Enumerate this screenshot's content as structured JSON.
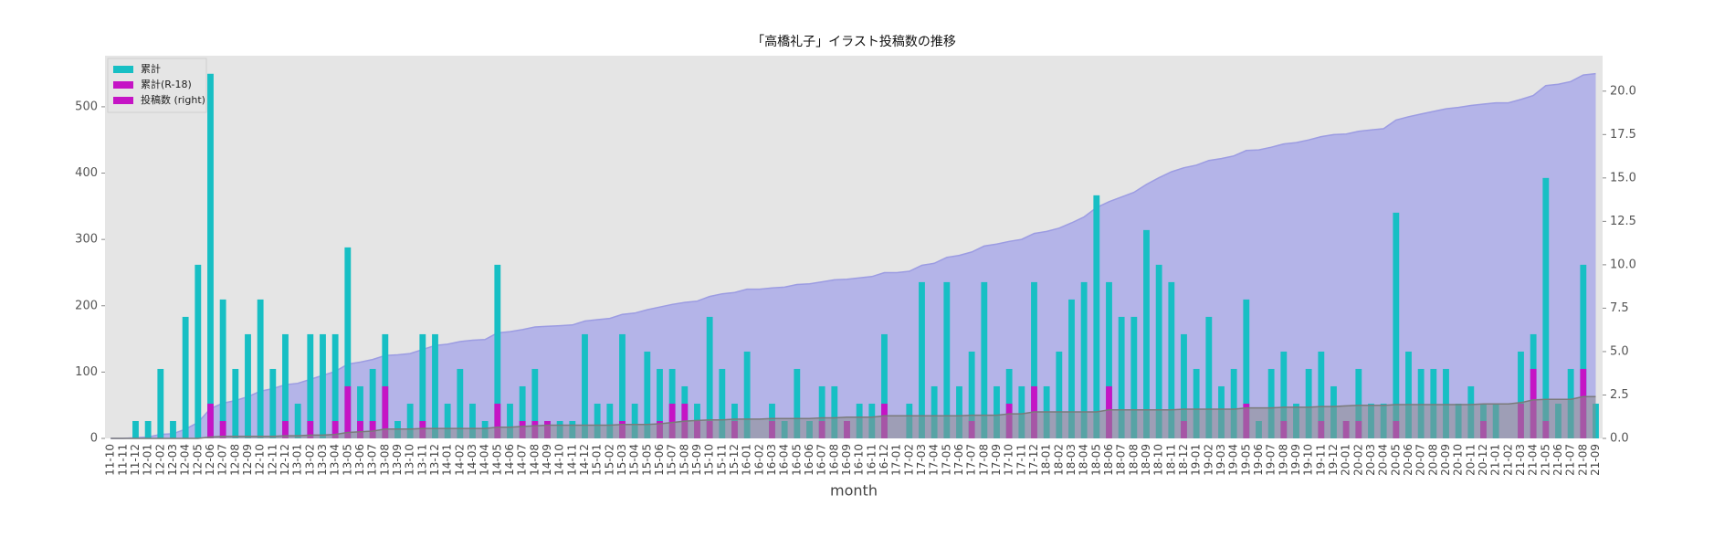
{
  "chart_data": {
    "type": "area_bar",
    "title": "「高橋礼子」イラスト投稿数の推移",
    "xlabel": "month",
    "categories": [
      "11-10",
      "11-11",
      "11-12",
      "12-01",
      "12-02",
      "12-03",
      "12-04",
      "12-05",
      "12-06",
      "12-07",
      "12-08",
      "12-09",
      "12-10",
      "12-11",
      "12-12",
      "13-01",
      "13-02",
      "13-03",
      "13-04",
      "13-05",
      "13-06",
      "13-07",
      "13-08",
      "13-09",
      "13-10",
      "13-11",
      "13-12",
      "14-01",
      "14-02",
      "14-03",
      "14-04",
      "14-05",
      "14-06",
      "14-07",
      "14-08",
      "14-09",
      "14-10",
      "14-11",
      "14-12",
      "15-01",
      "15-02",
      "15-03",
      "15-04",
      "15-05",
      "15-06",
      "15-07",
      "15-08",
      "15-09",
      "15-10",
      "15-11",
      "15-12",
      "16-01",
      "16-02",
      "16-03",
      "16-04",
      "16-05",
      "16-06",
      "16-07",
      "16-08",
      "16-09",
      "16-10",
      "16-11",
      "16-12",
      "17-01",
      "17-02",
      "17-03",
      "17-04",
      "17-05",
      "17-06",
      "17-07",
      "17-08",
      "17-09",
      "17-10",
      "17-11",
      "17-12",
      "18-01",
      "18-02",
      "18-03",
      "18-04",
      "18-05",
      "18-06",
      "18-07",
      "18-08",
      "18-09",
      "18-10",
      "18-11",
      "18-12",
      "19-01",
      "19-02",
      "19-03",
      "19-04",
      "19-05",
      "19-06",
      "19-07",
      "19-08",
      "19-09",
      "19-10",
      "19-11",
      "19-12",
      "20-01",
      "20-02",
      "20-03",
      "20-04",
      "20-05",
      "20-06",
      "20-07",
      "20-08",
      "20-09",
      "20-10",
      "20-11",
      "20-12",
      "21-01",
      "21-02",
      "21-03",
      "21-04",
      "21-05",
      "21-06",
      "21-07",
      "21-08",
      "21-09"
    ],
    "series": [
      {
        "name": "累計",
        "type": "area",
        "color": "#b4b4e8",
        "line_color": "#9c9ce2",
        "values": [
          0,
          0,
          1,
          2,
          6,
          7,
          14,
          24,
          45,
          53,
          57,
          63,
          71,
          75,
          81,
          83,
          89,
          95,
          101,
          112,
          115,
          119,
          125,
          126,
          128,
          134,
          140,
          142,
          146,
          148,
          149,
          159,
          161,
          164,
          168,
          169,
          170,
          171,
          177,
          179,
          181,
          187,
          189,
          194,
          198,
          202,
          205,
          207,
          214,
          218,
          220,
          225,
          225,
          227,
          228,
          232,
          233,
          236,
          239,
          240,
          242,
          244,
          250,
          250,
          252,
          261,
          264,
          273,
          276,
          281,
          290,
          293,
          297,
          300,
          309,
          312,
          317,
          325,
          334,
          348,
          357,
          364,
          371,
          383,
          393,
          402,
          408,
          412,
          419,
          422,
          426,
          434,
          435,
          439,
          444,
          446,
          450,
          455,
          458,
          459,
          463,
          465,
          467,
          480,
          485,
          489,
          493,
          497,
          499,
          502,
          504,
          506,
          506,
          511,
          517,
          532,
          534,
          538,
          548,
          550
        ]
      },
      {
        "name": "累計(R-18)",
        "type": "area",
        "color": "#8c8c8c",
        "line_color": "#7a7a7a",
        "values": [
          0,
          0,
          0,
          0,
          0,
          0,
          0,
          0,
          2,
          3,
          3,
          3,
          3,
          3,
          4,
          4,
          5,
          5,
          6,
          9,
          10,
          11,
          14,
          14,
          14,
          15,
          15,
          15,
          15,
          15,
          15,
          17,
          17,
          18,
          19,
          20,
          20,
          20,
          20,
          20,
          20,
          21,
          21,
          21,
          22,
          24,
          26,
          27,
          28,
          28,
          29,
          29,
          29,
          30,
          30,
          30,
          30,
          31,
          31,
          32,
          32,
          32,
          34,
          34,
          34,
          34,
          34,
          34,
          34,
          35,
          35,
          35,
          37,
          37,
          40,
          40,
          40,
          40,
          40,
          40,
          43,
          43,
          43,
          43,
          43,
          43,
          44,
          44,
          44,
          44,
          44,
          46,
          46,
          46,
          47,
          47,
          47,
          48,
          48,
          49,
          50,
          50,
          50,
          51,
          51,
          51,
          51,
          51,
          51,
          51,
          52,
          52,
          52,
          54,
          58,
          59,
          59,
          59,
          63,
          63
        ]
      },
      {
        "name": "投稿数 (right)",
        "type": "bar",
        "axis": "y2",
        "color": "#17bfc4",
        "values": [
          0,
          0,
          1,
          1,
          4,
          1,
          7,
          10,
          21,
          8,
          4,
          6,
          8,
          4,
          6,
          2,
          6,
          6,
          6,
          11,
          3,
          4,
          6,
          1,
          2,
          6,
          6,
          2,
          4,
          2,
          1,
          10,
          2,
          3,
          4,
          1,
          1,
          1,
          6,
          2,
          2,
          6,
          2,
          5,
          4,
          4,
          3,
          2,
          7,
          4,
          2,
          5,
          0,
          2,
          1,
          4,
          1,
          3,
          3,
          1,
          2,
          2,
          6,
          0,
          2,
          9,
          3,
          9,
          3,
          5,
          9,
          3,
          4,
          3,
          9,
          3,
          5,
          8,
          9,
          14,
          9,
          7,
          7,
          12,
          10,
          9,
          6,
          4,
          7,
          3,
          4,
          8,
          1,
          4,
          5,
          2,
          4,
          5,
          3,
          1,
          4,
          2,
          2,
          13,
          5,
          4,
          4,
          4,
          2,
          3,
          2,
          2,
          0,
          5,
          6,
          15,
          2,
          4,
          10,
          2
        ]
      },
      {
        "type": "bar",
        "axis": "y2",
        "color": "#c514c5",
        "values": [
          0,
          0,
          0,
          0,
          0,
          0,
          0,
          0,
          2,
          1,
          0,
          0,
          0,
          0,
          1,
          0,
          1,
          0,
          1,
          3,
          1,
          1,
          3,
          0,
          0,
          1,
          0,
          0,
          0,
          0,
          0,
          2,
          0,
          1,
          1,
          1,
          0,
          0,
          0,
          0,
          0,
          1,
          0,
          0,
          1,
          2,
          2,
          1,
          1,
          0,
          1,
          0,
          0,
          1,
          0,
          0,
          0,
          1,
          0,
          1,
          0,
          0,
          2,
          0,
          0,
          0,
          0,
          0,
          0,
          1,
          0,
          0,
          2,
          0,
          3,
          0,
          0,
          0,
          0,
          0,
          3,
          0,
          0,
          0,
          0,
          0,
          1,
          0,
          0,
          0,
          0,
          2,
          0,
          0,
          1,
          0,
          0,
          1,
          0,
          1,
          1,
          0,
          0,
          1,
          0,
          0,
          0,
          0,
          0,
          0,
          1,
          0,
          0,
          2,
          4,
          1,
          0,
          0,
          4,
          0
        ]
      }
    ],
    "ylim": [
      0,
      577
    ],
    "yticks": [
      0,
      100,
      200,
      300,
      400,
      500
    ],
    "y2lim": [
      0,
      22.04
    ],
    "y2ticks": [
      {
        "value": 0,
        "label": "0.0"
      },
      {
        "value": 2.5,
        "label": "2.5"
      },
      {
        "value": 5,
        "label": "5.0"
      },
      {
        "value": 7.5,
        "label": "7.5"
      },
      {
        "value": 10,
        "label": "10.0"
      },
      {
        "value": 12.5,
        "label": "12.5"
      },
      {
        "value": 15,
        "label": "15.0"
      },
      {
        "value": 17.5,
        "label": "17.5"
      },
      {
        "value": 20,
        "label": "20.0"
      }
    ],
    "grid": false,
    "plot_background": "#e5e5e5",
    "legend": {
      "loc": "upper left",
      "colors": [
        "#17bfc4",
        "#c514c5",
        "#c514c5"
      ]
    }
  }
}
